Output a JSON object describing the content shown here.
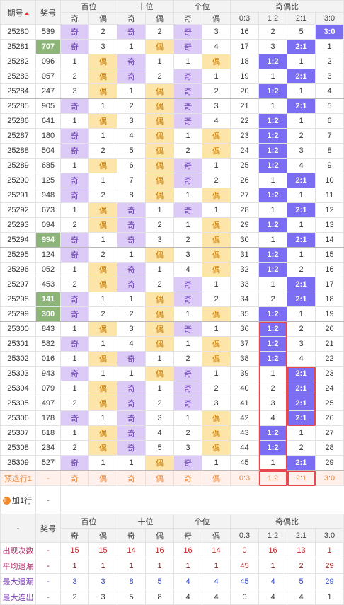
{
  "header": {
    "period": "期号",
    "number": "奖号",
    "groups": [
      "百位",
      "十位",
      "个位",
      "奇偶比"
    ],
    "sub": [
      "奇",
      "偶"
    ],
    "ratios": [
      "0:3",
      "1:2",
      "2:1",
      "3:0"
    ]
  },
  "rows": [
    [
      "25280",
      "539",
      "奇",
      2,
      "奇",
      2,
      "奇",
      3,
      16,
      2,
      5,
      "3:0"
    ],
    [
      "25281",
      "707",
      "奇",
      3,
      1,
      "偶",
      "奇",
      4,
      17,
      3,
      "2:1",
      1
    ],
    [
      "25282",
      "096",
      1,
      "偶",
      "奇",
      1,
      1,
      "偶",
      18,
      "1:2",
      1,
      2
    ],
    [
      "25283",
      "057",
      2,
      "偶",
      "奇",
      2,
      "奇",
      1,
      19,
      1,
      "2:1",
      3
    ],
    [
      "25284",
      "247",
      3,
      "偶",
      1,
      "偶",
      "奇",
      2,
      20,
      "1:2",
      1,
      4
    ],
    [
      "25285",
      "905",
      "奇",
      1,
      2,
      "偶",
      "奇",
      3,
      21,
      1,
      "2:1",
      5
    ],
    [
      "25286",
      "641",
      1,
      "偶",
      3,
      "偶",
      "奇",
      4,
      22,
      "1:2",
      1,
      6
    ],
    [
      "25287",
      "180",
      "奇",
      1,
      4,
      "偶",
      1,
      "偶",
      23,
      "1:2",
      2,
      7
    ],
    [
      "25288",
      "504",
      "奇",
      2,
      5,
      "偶",
      2,
      "偶",
      24,
      "1:2",
      3,
      8
    ],
    [
      "25289",
      "685",
      1,
      "偶",
      6,
      "偶",
      "奇",
      1,
      25,
      "1:2",
      4,
      9
    ],
    [
      "25290",
      "125",
      "奇",
      1,
      7,
      "偶",
      "奇",
      2,
      26,
      1,
      "2:1",
      10
    ],
    [
      "25291",
      "948",
      "奇",
      2,
      8,
      "偶",
      1,
      "偶",
      27,
      "1:2",
      1,
      11
    ],
    [
      "25292",
      "673",
      1,
      "偶",
      "奇",
      1,
      "奇",
      1,
      28,
      1,
      "2:1",
      12
    ],
    [
      "25293",
      "094",
      2,
      "偶",
      "奇",
      2,
      1,
      "偶",
      29,
      "1:2",
      1,
      13
    ],
    [
      "25294",
      "994",
      "奇",
      1,
      "奇",
      3,
      2,
      "偶",
      30,
      1,
      "2:1",
      14
    ],
    [
      "25295",
      "124",
      "奇",
      2,
      1,
      "偶",
      3,
      "偶",
      31,
      "1:2",
      1,
      15
    ],
    [
      "25296",
      "052",
      1,
      "偶",
      "奇",
      1,
      4,
      "偶",
      32,
      "1:2",
      2,
      16
    ],
    [
      "25297",
      "453",
      2,
      "偶",
      "奇",
      2,
      "奇",
      1,
      33,
      1,
      "2:1",
      17
    ],
    [
      "25298",
      "141",
      "奇",
      1,
      1,
      "偶",
      "奇",
      2,
      34,
      2,
      "2:1",
      18
    ],
    [
      "25299",
      "300",
      "奇",
      2,
      2,
      "偶",
      1,
      "偶",
      35,
      "1:2",
      1,
      19
    ],
    [
      "25300",
      "843",
      1,
      "偶",
      3,
      "偶",
      "奇",
      1,
      36,
      "1:2",
      2,
      20
    ],
    [
      "25301",
      "582",
      "奇",
      1,
      4,
      "偶",
      1,
      "偶",
      37,
      "1:2",
      3,
      21
    ],
    [
      "25302",
      "016",
      1,
      "偶",
      "奇",
      1,
      2,
      "偶",
      38,
      "1:2",
      4,
      22
    ],
    [
      "25303",
      "943",
      "奇",
      1,
      1,
      "偶",
      "奇",
      1,
      39,
      1,
      "2:1",
      23
    ],
    [
      "25304",
      "079",
      1,
      "偶",
      "奇",
      1,
      "奇",
      2,
      40,
      2,
      "2:1",
      24
    ],
    [
      "25305",
      "497",
      2,
      "偶",
      "奇",
      2,
      "奇",
      3,
      41,
      3,
      "2:1",
      25
    ],
    [
      "25306",
      "178",
      "奇",
      1,
      "奇",
      3,
      1,
      "偶",
      42,
      4,
      "2:1",
      26
    ],
    [
      "25307",
      "618",
      1,
      "偶",
      "奇",
      4,
      2,
      "偶",
      43,
      "1:2",
      1,
      27
    ],
    [
      "25308",
      "234",
      2,
      "偶",
      "奇",
      5,
      3,
      "偶",
      44,
      "1:2",
      2,
      28
    ],
    [
      "25309",
      "527",
      "奇",
      1,
      1,
      "偶",
      "奇",
      1,
      45,
      1,
      "2:1",
      29
    ]
  ],
  "preview": [
    "预选行1",
    "-",
    "奇",
    "偶",
    "奇",
    "偶",
    "奇",
    "偶",
    "0:3",
    "1:2",
    "2:1",
    "3:0"
  ],
  "add_row": {
    "label": "加1行",
    "value": "-"
  },
  "footer_header": {
    "dash": "-"
  },
  "stats": [
    {
      "label": "出现次数",
      "values": [
        "-",
        15,
        15,
        14,
        16,
        16,
        14,
        0,
        16,
        13,
        1
      ]
    },
    {
      "label": "平均遗漏",
      "values": [
        "-",
        1,
        1,
        1,
        1,
        1,
        1,
        45,
        1,
        2,
        29
      ]
    },
    {
      "label": "最大遗漏",
      "values": [
        "-",
        3,
        3,
        8,
        5,
        4,
        4,
        45,
        4,
        5,
        29
      ]
    },
    {
      "label": "最大连出",
      "values": [
        "-",
        2,
        3,
        5,
        8,
        4,
        4,
        0,
        4,
        4,
        1
      ]
    }
  ]
}
